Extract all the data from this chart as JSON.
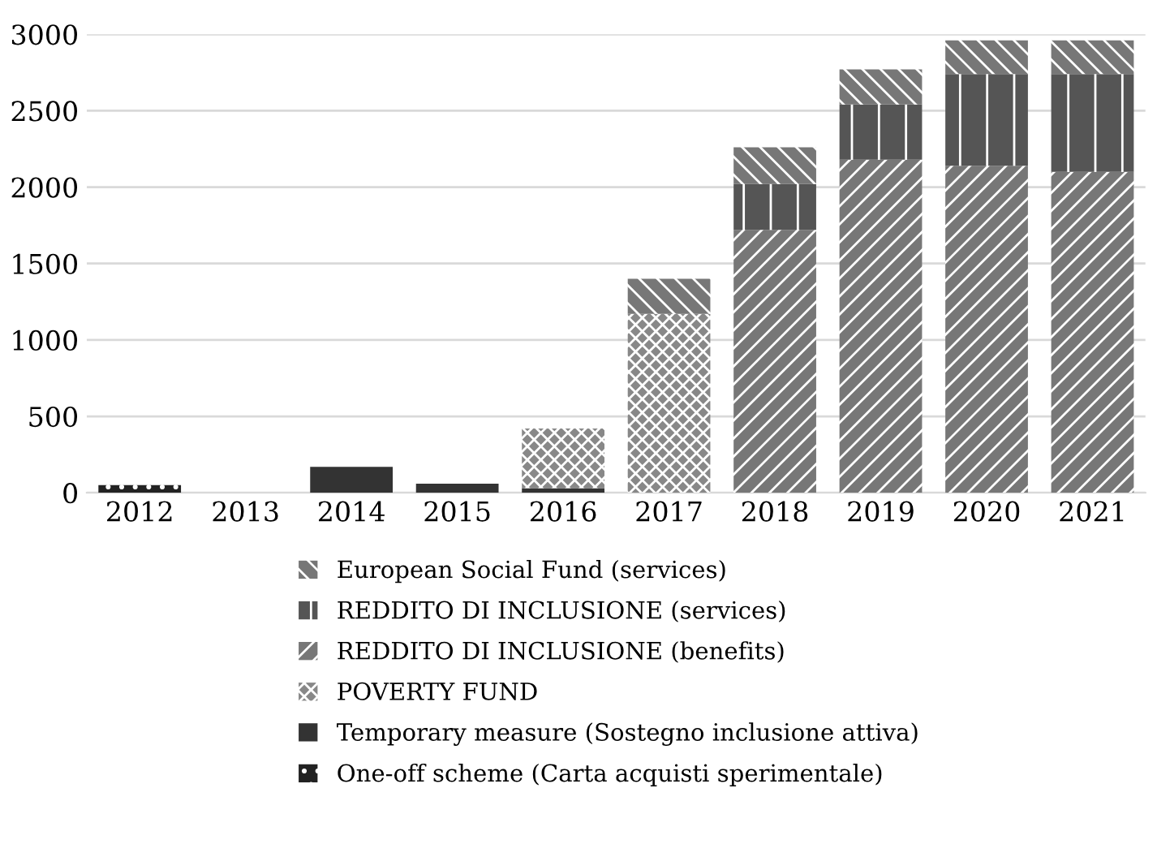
{
  "chart_data": {
    "type": "bar",
    "stacked": true,
    "categories": [
      "2012",
      "2013",
      "2014",
      "2015",
      "2016",
      "2017",
      "2018",
      "2019",
      "2020",
      "2021"
    ],
    "series": [
      {
        "name": "One-off scheme (Carta acquisti sperimentale)",
        "color": "#222222",
        "values": [
          50,
          null,
          null,
          null,
          null,
          null,
          null,
          null,
          null,
          null
        ]
      },
      {
        "name": "Temporary measure (Sostegno inclusione attiva)",
        "color": "#333333",
        "values": [
          null,
          null,
          170,
          60,
          30,
          null,
          null,
          null,
          null,
          null
        ]
      },
      {
        "name": "POVERTY FUND",
        "color": "#888888",
        "values": [
          null,
          null,
          null,
          null,
          390,
          1170,
          null,
          null,
          null,
          null
        ]
      },
      {
        "name": "REDDITO DI INCLUSIONE (benefits)",
        "color": "#777777",
        "values": [
          null,
          null,
          null,
          null,
          null,
          null,
          1720,
          2180,
          2140,
          2100
        ]
      },
      {
        "name": "REDDITO DI INCLUSIONE (services)",
        "color": "#555555",
        "values": [
          null,
          null,
          null,
          null,
          null,
          null,
          300,
          360,
          600,
          640
        ]
      },
      {
        "name": "European Social Fund (services)",
        "color": "#777777",
        "values": [
          null,
          null,
          null,
          null,
          null,
          230,
          240,
          230,
          220,
          220
        ]
      }
    ],
    "ylim": [
      0,
      3000
    ],
    "yticks": [
      0,
      500,
      1000,
      1500,
      2000,
      2500,
      3000
    ],
    "grid": "y",
    "legend": "bottom"
  }
}
